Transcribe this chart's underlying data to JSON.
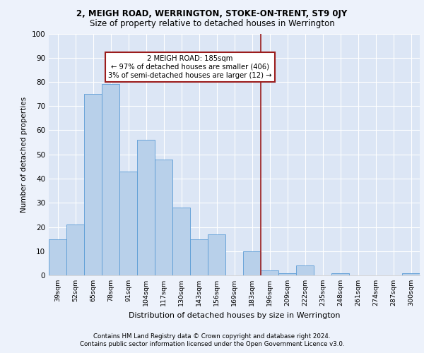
{
  "title": "2, MEIGH ROAD, WERRINGTON, STOKE-ON-TRENT, ST9 0JY",
  "subtitle": "Size of property relative to detached houses in Werrington",
  "xlabel": "Distribution of detached houses by size in Werrington",
  "ylabel": "Number of detached properties",
  "categories": [
    "39sqm",
    "52sqm",
    "65sqm",
    "78sqm",
    "91sqm",
    "104sqm",
    "117sqm",
    "130sqm",
    "143sqm",
    "156sqm",
    "169sqm",
    "183sqm",
    "196sqm",
    "209sqm",
    "222sqm",
    "235sqm",
    "248sqm",
    "261sqm",
    "274sqm",
    "287sqm",
    "300sqm"
  ],
  "values": [
    15,
    21,
    75,
    79,
    43,
    56,
    48,
    28,
    15,
    17,
    0,
    10,
    2,
    1,
    4,
    0,
    1,
    0,
    0,
    0,
    1
  ],
  "bar_color": "#b8d0ea",
  "bar_edge_color": "#5b9bd5",
  "vline_x_idx": 11.5,
  "vline_color": "#9b1c1c",
  "annotation_title": "2 MEIGH ROAD: 185sqm",
  "annotation_line1": "← 97% of detached houses are smaller (406)",
  "annotation_line2": "3% of semi-detached houses are larger (12) →",
  "annotation_box_color": "#9b1c1c",
  "ylim": [
    0,
    100
  ],
  "yticks": [
    0,
    10,
    20,
    30,
    40,
    50,
    60,
    70,
    80,
    90,
    100
  ],
  "footer1": "Contains HM Land Registry data © Crown copyright and database right 2024.",
  "footer2": "Contains public sector information licensed under the Open Government Licence v3.0.",
  "bg_color": "#dce6f5",
  "fig_bg_color": "#edf2fb",
  "grid_color": "#ffffff"
}
